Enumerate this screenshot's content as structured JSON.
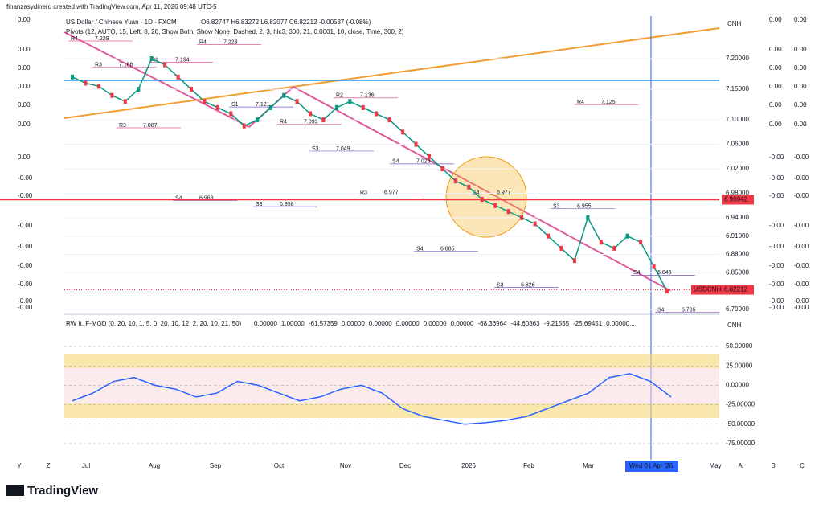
{
  "header": {
    "credit": "finanzasydinero created with TradingView.com, Apr 11, 2026 09:48 UTC-5"
  },
  "main": {
    "symbol": "US Dollar / Chinese Yuan · 1D · FXCM",
    "ohlc": "O6.82747 H6.83272 L6.82077 C6.82212 -0.00537 (-0.08%)",
    "pivots": "Pivots (12, AUTO, 15, Left, 8, 20, Show Both, Show None, Dashed, 2, 3, hlc3, 300, 21, 0.0001, 10, close, Time, 300, 2)",
    "currency": "CNH",
    "ylim": [
      6.7834,
      7.2697
    ],
    "yticks": [
      {
        "value": 7.2,
        "label": "7.20000"
      },
      {
        "value": 7.15,
        "label": "7.15000"
      },
      {
        "value": 7.1,
        "label": "7.10000"
      },
      {
        "value": 7.06,
        "label": "7.06000"
      },
      {
        "value": 7.02,
        "label": "7.02000"
      },
      {
        "value": 6.98,
        "label": "6.98000"
      },
      {
        "value": 6.94,
        "label": "6.94000"
      },
      {
        "value": 6.91,
        "label": "6.91000"
      },
      {
        "value": 6.88,
        "label": "6.88000"
      },
      {
        "value": 6.85,
        "label": "6.85000"
      },
      {
        "value": 6.82,
        "label": "6.82000"
      },
      {
        "value": 6.79,
        "label": "6.79000"
      }
    ],
    "closes": [
      7.17,
      7.16,
      7.155,
      7.14,
      7.13,
      7.15,
      7.2,
      7.19,
      7.17,
      7.15,
      7.13,
      7.12,
      7.11,
      7.09,
      7.1,
      7.12,
      7.14,
      7.13,
      7.11,
      7.1,
      7.12,
      7.13,
      7.12,
      7.11,
      7.1,
      7.08,
      7.06,
      7.04,
      7.02,
      7.0,
      6.99,
      6.97,
      6.96,
      6.95,
      6.94,
      6.93,
      6.91,
      6.89,
      6.87,
      6.94,
      6.9,
      6.89,
      6.91,
      6.9,
      6.86,
      6.82
    ],
    "hline": {
      "value": 6.96942,
      "label": "6.96942"
    },
    "last": {
      "name": "USDCNH",
      "value": 6.82212,
      "label": "6.82212"
    },
    "pivot_levels": [
      {
        "name": "R4",
        "value": 7.229
      },
      {
        "name": "R1",
        "value": 7.194
      },
      {
        "name": "S1",
        "value": 7.121
      },
      {
        "name": "S3",
        "value": 7.049
      },
      {
        "name": "S4",
        "value": 7.028
      },
      {
        "name": "S4",
        "value": 6.977
      },
      {
        "name": "S3",
        "value": 6.955
      },
      {
        "name": "S4",
        "value": 6.846
      },
      {
        "name": "R3",
        "value": 7.186
      },
      {
        "name": "S4",
        "value": 6.968
      },
      {
        "name": "S3",
        "value": 6.958
      },
      {
        "name": "R2",
        "value": 7.136
      },
      {
        "name": "S4",
        "value": 6.885
      },
      {
        "name": "S3",
        "value": 6.826
      },
      {
        "name": "R4",
        "value": 7.125
      },
      {
        "name": "S4",
        "value": 6.785
      },
      {
        "name": "R3",
        "value": 7.087
      },
      {
        "name": "R4",
        "value": 7.223
      },
      {
        "name": "R4",
        "value": 7.093
      },
      {
        "name": "R3",
        "value": 6.977
      }
    ]
  },
  "left_scale": [
    "0.00",
    "0.00",
    "0.00",
    "0.00",
    "0.00",
    "0.00",
    "0.00",
    "-0.00",
    "-0.00",
    "-0.00",
    "-0.00",
    "-0.00",
    "-0.00",
    "-0.00",
    "-0.00"
  ],
  "right_scale": [
    "0.00",
    "0.00",
    "0.00",
    "0.00",
    "0.00",
    "0.00",
    "-0.00",
    "-0.00",
    "-0.00",
    "-0.00",
    "-0.00",
    "-0.00",
    "-0.00",
    "-0.00",
    "-0.00"
  ],
  "osc": {
    "title": "RW ft. F-MOD (0, 20, 10, 1, 5, 0, 20, 10, 12, 2, 20, 10, 21, 50)",
    "readouts": [
      "0.00000",
      "1.00000",
      "-61.57359",
      "0.00000",
      "0.00000",
      "0.00000",
      "0.00000",
      "0.00000",
      "-68.36964",
      "-44.60863",
      "-9.21555",
      "-25.69451",
      "0.00000..."
    ],
    "currency": "CNH",
    "ylim": [
      -93.6,
      82
    ],
    "yticks": [
      {
        "value": 50,
        "label": "50.00000"
      },
      {
        "value": 25,
        "label": "25.00000"
      },
      {
        "value": 0,
        "label": "0.00000"
      },
      {
        "value": -25,
        "label": "-25.00000"
      },
      {
        "value": -50,
        "label": "-50.00000"
      },
      {
        "value": -75,
        "label": "-75.00000"
      }
    ],
    "line": [
      -20,
      -10,
      5,
      10,
      0,
      -5,
      -15,
      -10,
      5,
      0,
      -10,
      -20,
      -15,
      -5,
      0,
      -10,
      -30,
      -40,
      -45,
      -50,
      -48,
      -45,
      -40,
      -30,
      -20,
      -10,
      10,
      15,
      5,
      -15
    ]
  },
  "time_axis": [
    "Y",
    "Z",
    "Jul",
    "Aug",
    "Sep",
    "Oct",
    "Nov",
    "Dec",
    "2026",
    "Feb",
    "Mar",
    "Wed 01 Apr '26",
    "May",
    "A",
    "B",
    "C"
  ],
  "footer": {
    "brand": "TradingView"
  }
}
